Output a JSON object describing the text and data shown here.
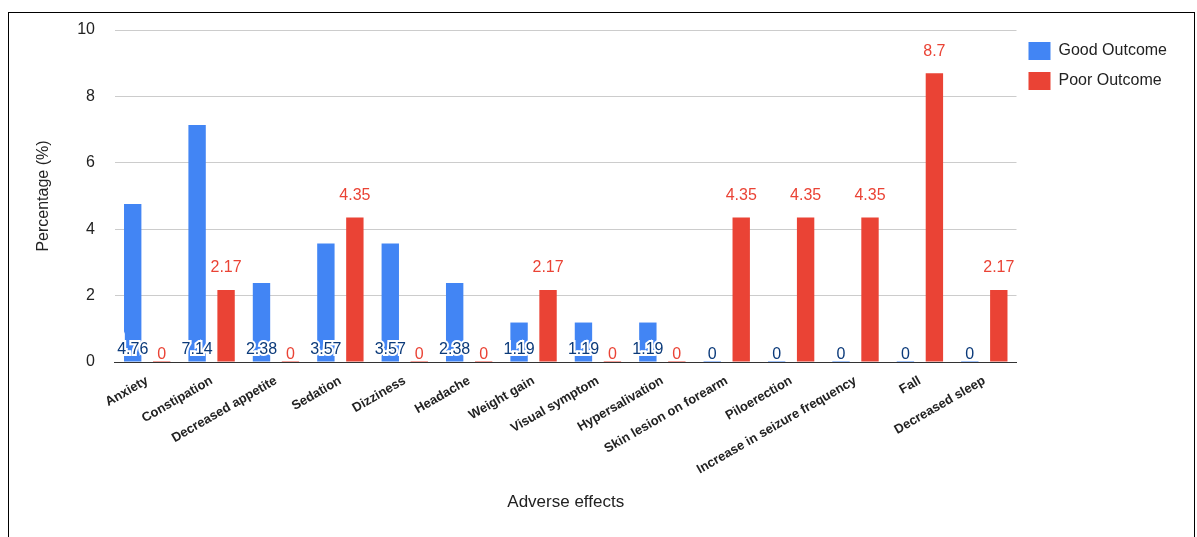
{
  "chart_data": {
    "type": "bar",
    "xlabel": "Adverse effects",
    "ylabel": "Percentage (%)",
    "categories": [
      "Anxiety",
      "Constipation",
      "Decreased appetite",
      "Sedation",
      "Dizziness",
      "Headache",
      "Weight gain",
      "Visual symptom",
      "Hypersalivation",
      "Skin lesion on forearm",
      "Piloerection",
      "Increase in seizure frequency",
      "Fall",
      "Decreased sleep"
    ],
    "series": [
      {
        "name": "Good Outcome",
        "color": "#4285f4",
        "values": [
          4.76,
          7.14,
          2.38,
          3.57,
          3.57,
          2.38,
          1.19,
          1.19,
          1.19,
          0,
          0,
          0,
          0,
          0
        ]
      },
      {
        "name": "Poor Outcome",
        "color": "#ea4335",
        "values": [
          0,
          2.17,
          0,
          4.35,
          0,
          0,
          2.17,
          0,
          0,
          4.35,
          4.35,
          4.35,
          8.7,
          2.17
        ]
      }
    ],
    "ylim": [
      0,
      10
    ],
    "yticks": [
      0,
      2,
      4,
      6,
      8,
      10
    ],
    "grid": "y",
    "legend": "right",
    "data_labels": true
  }
}
